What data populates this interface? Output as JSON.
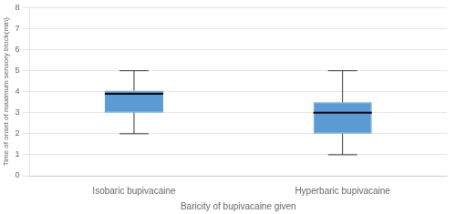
{
  "chart_data": {
    "type": "box",
    "categories": [
      "Isobaric bupivacaine",
      "Hyperbaric bupivacaine"
    ],
    "boxes": [
      {
        "whislo": 2.0,
        "q1": 3.0,
        "med": 3.9,
        "q3": 4.05,
        "whishi": 5.0
      },
      {
        "whislo": 1.0,
        "q1": 2.0,
        "med": 3.0,
        "q3": 3.5,
        "whishi": 5.0
      }
    ],
    "color": "#5B9BD5",
    "ylabel": "Time of onset of maximum sensory block(min)",
    "xlabel": "Baricity of bupivacaine given",
    "ylim": [
      0,
      8
    ],
    "yticks": [
      0,
      1,
      2,
      3,
      4,
      5,
      6,
      7,
      8
    ],
    "grid": true
  }
}
